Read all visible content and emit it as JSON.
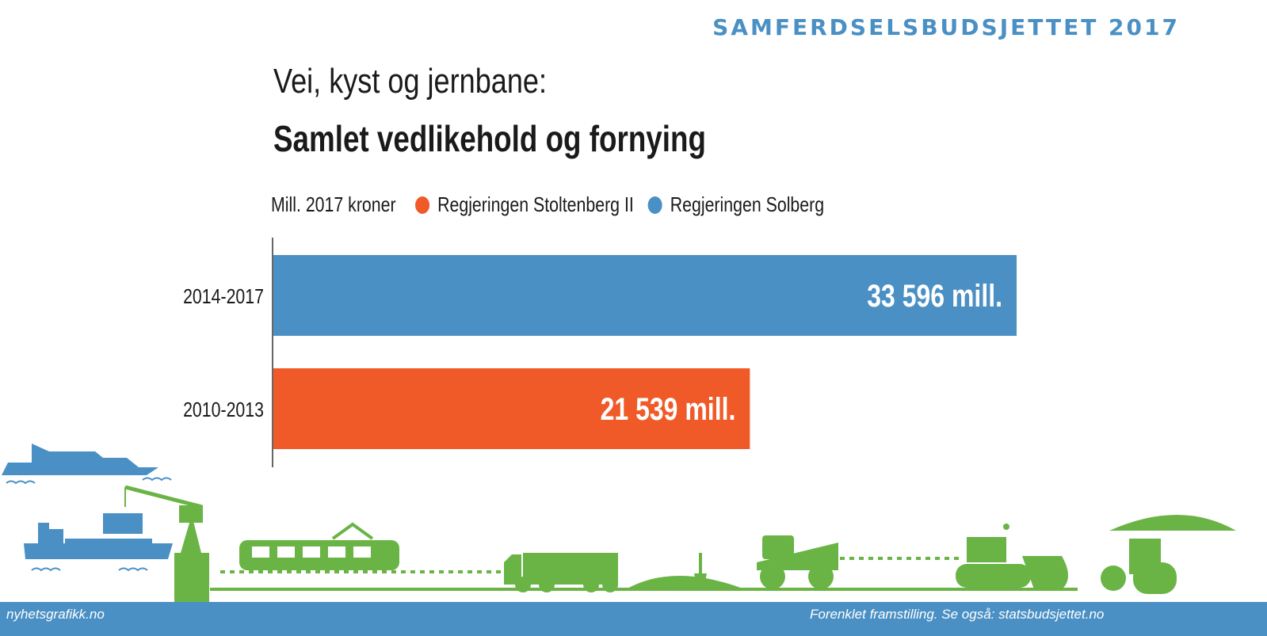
{
  "header": {
    "kicker": "SAMFERDSELSBUDSJETTET 2017",
    "title_line1": "Vei, kyst og jernbane:",
    "title_line2": "Samlet vedlikehold og fornying"
  },
  "legend": {
    "unit": "Mill. 2017 kroner",
    "items": [
      {
        "label": "Regjeringen Stoltenberg II",
        "color": "#f05a28"
      },
      {
        "label": "Regjeringen Solberg",
        "color": "#4a90c4"
      }
    ]
  },
  "chart_data": {
    "type": "bar",
    "orientation": "horizontal",
    "categories": [
      "2014-2017",
      "2010-2013"
    ],
    "values": [
      33596,
      21539
    ],
    "value_labels": [
      "33 596 mill.",
      "21 539 mill."
    ],
    "colors": [
      "#4a90c4",
      "#f05a28"
    ],
    "series": [
      {
        "name": "Regjeringen Solberg",
        "category": "2014-2017",
        "value": 33596
      },
      {
        "name": "Regjeringen Stoltenberg II",
        "category": "2010-2013",
        "value": 21539
      }
    ],
    "xlim": [
      0,
      33596
    ],
    "grid": false,
    "legend_position": "top"
  },
  "footer": {
    "credit": "nyhetsgrafikk.no",
    "note": "Forenklet framstilling. Se også: statsbudsjettet.no"
  },
  "illustration": {
    "icons": [
      "ferry-icon",
      "container-ship-icon",
      "harbor-crane-icon",
      "tram-icon",
      "truck-icon",
      "gravel-pile-icon",
      "shovel-icon",
      "dump-truck-icon",
      "bulldozer-icon",
      "road-roller-icon"
    ],
    "colors": {
      "green": "#6ab446",
      "blue": "#4a90c4"
    }
  }
}
